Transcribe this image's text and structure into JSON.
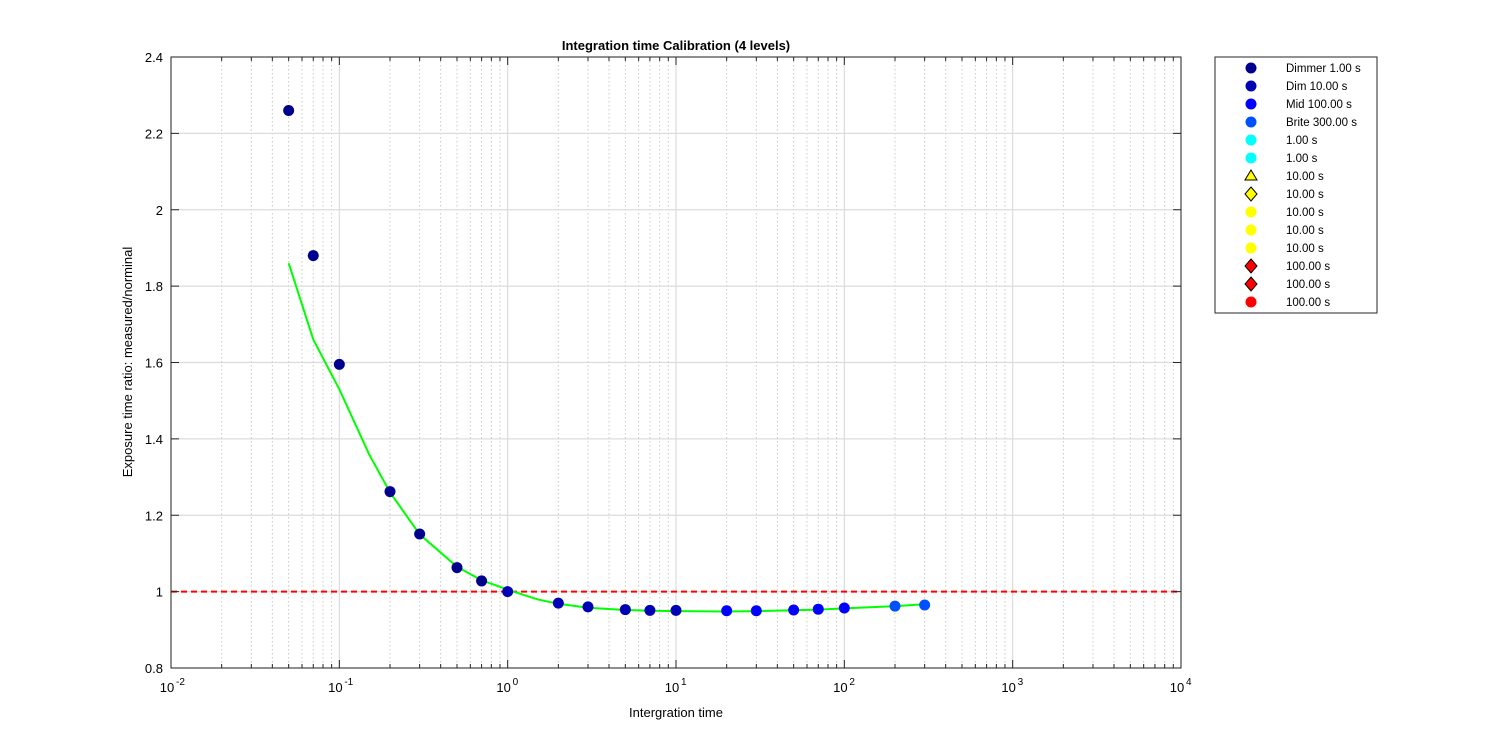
{
  "chart_data": {
    "type": "scatter",
    "title": "Integration time Calibration (4 levels)",
    "xlabel": "Intergration time",
    "ylabel": "Exposure time ratio: measured/norminal",
    "xscale": "log",
    "xlim": [
      0.01,
      10000
    ],
    "ylim": [
      0.8,
      2.4
    ],
    "x_ticks": [
      {
        "value": 0.01,
        "base": "10",
        "exp": "-2"
      },
      {
        "value": 0.1,
        "base": "10",
        "exp": "-1"
      },
      {
        "value": 1,
        "base": "10",
        "exp": "0"
      },
      {
        "value": 10,
        "base": "10",
        "exp": "1"
      },
      {
        "value": 100,
        "base": "10",
        "exp": "2"
      },
      {
        "value": 1000,
        "base": "10",
        "exp": "3"
      },
      {
        "value": 10000,
        "base": "10",
        "exp": "4"
      }
    ],
    "y_ticks": [
      {
        "value": 0.8,
        "label": "0.8"
      },
      {
        "value": 1.0,
        "label": "1"
      },
      {
        "value": 1.2,
        "label": "1.2"
      },
      {
        "value": 1.4,
        "label": "1.4"
      },
      {
        "value": 1.6,
        "label": "1.6"
      },
      {
        "value": 1.8,
        "label": "1.8"
      },
      {
        "value": 2.0,
        "label": "2"
      },
      {
        "value": 2.2,
        "label": "2.2"
      },
      {
        "value": 2.4,
        "label": "2.4"
      }
    ],
    "grid": true,
    "legend_position": "outside top-right",
    "reference_line": {
      "y": 1.0,
      "color": "#ff0000",
      "style": "dashed"
    },
    "series": [
      {
        "name": "Dimmer 1.00 s",
        "marker": "circle",
        "color": "#00008f",
        "points": [
          [
            0.05,
            2.26
          ],
          [
            0.07,
            1.88
          ],
          [
            0.1,
            1.595
          ],
          [
            0.2,
            1.262
          ],
          [
            0.3,
            1.151
          ],
          [
            0.5,
            1.063
          ],
          [
            0.7,
            1.028
          ]
        ]
      },
      {
        "name": "Dim 10.00 s",
        "marker": "circle",
        "color": "#0000b5",
        "points": [
          [
            1,
            1.0
          ],
          [
            2,
            0.97
          ],
          [
            3,
            0.96
          ],
          [
            5,
            0.953
          ],
          [
            7,
            0.951
          ],
          [
            10,
            0.951
          ]
        ]
      },
      {
        "name": "Mid 100.00 s",
        "marker": "circle",
        "color": "#0000ff",
        "points": [
          [
            20,
            0.95
          ],
          [
            30,
            0.95
          ],
          [
            50,
            0.952
          ],
          [
            70,
            0.954
          ],
          [
            100,
            0.957
          ]
        ]
      },
      {
        "name": "Brite 300.00 s",
        "marker": "circle",
        "color": "#0050ff",
        "points": [
          [
            200,
            0.962
          ],
          [
            300,
            0.965
          ]
        ]
      },
      {
        "name": "1.00 s",
        "marker": "circle",
        "color": "#00ffff",
        "points": []
      },
      {
        "name": "1.00 s",
        "marker": "circle",
        "color": "#00ffff",
        "points": []
      },
      {
        "name": "10.00 s",
        "marker": "triangle",
        "color": "#ffff00",
        "points": []
      },
      {
        "name": "10.00 s",
        "marker": "diamond",
        "color": "#ffff00",
        "points": []
      },
      {
        "name": "10.00 s",
        "marker": "circle",
        "color": "#ffff00",
        "points": []
      },
      {
        "name": "10.00 s",
        "marker": "circle",
        "color": "#ffff00",
        "points": []
      },
      {
        "name": "10.00 s",
        "marker": "circle",
        "color": "#ffff00",
        "points": []
      },
      {
        "name": "100.00 s",
        "marker": "diamond",
        "color": "#ff0000",
        "points": []
      },
      {
        "name": "100.00 s",
        "marker": "diamond",
        "color": "#ff0000",
        "points": []
      },
      {
        "name": "100.00 s",
        "marker": "circle",
        "color": "#ff0000",
        "points": []
      }
    ],
    "fit_curve": {
      "color": "#00ff00",
      "points": [
        [
          0.05,
          1.86
        ],
        [
          0.07,
          1.66
        ],
        [
          0.1,
          1.53
        ],
        [
          0.15,
          1.36
        ],
        [
          0.2,
          1.26
        ],
        [
          0.3,
          1.15
        ],
        [
          0.5,
          1.065
        ],
        [
          0.7,
          1.03
        ],
        [
          1,
          1.005
        ],
        [
          1.5,
          0.98
        ],
        [
          2,
          0.968
        ],
        [
          3,
          0.958
        ],
        [
          5,
          0.952
        ],
        [
          7,
          0.95
        ],
        [
          10,
          0.949
        ],
        [
          20,
          0.948
        ],
        [
          30,
          0.949
        ],
        [
          50,
          0.951
        ],
        [
          70,
          0.953
        ],
        [
          100,
          0.956
        ],
        [
          200,
          0.962
        ],
        [
          300,
          0.967
        ]
      ]
    }
  }
}
